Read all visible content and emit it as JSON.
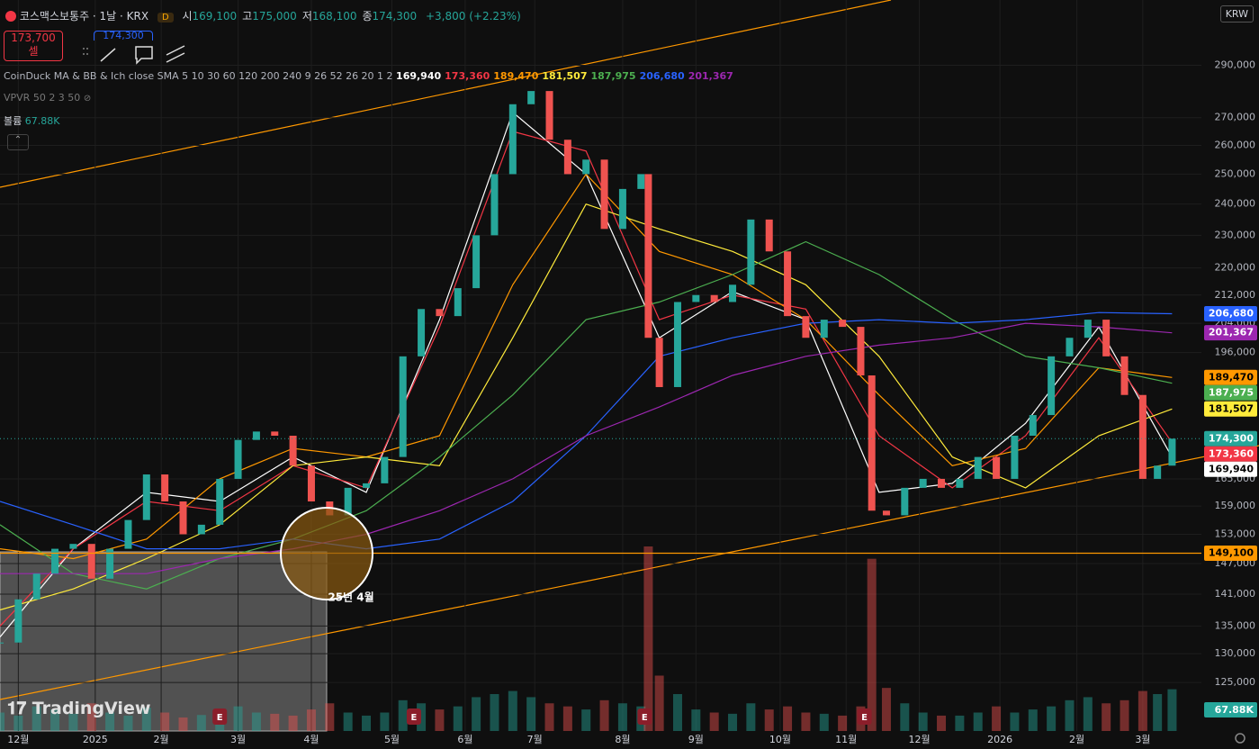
{
  "header": {
    "symbol": "코스맥스보통주 · 1날 · KRX",
    "interval_badge": "D",
    "ohlc": [
      {
        "label": "시",
        "value": "169,100"
      },
      {
        "label": "고",
        "value": "175,000"
      },
      {
        "label": "저",
        "value": "168,100"
      },
      {
        "label": "종",
        "value": "174,300"
      }
    ],
    "change": "+3,800 (+2.23%)",
    "sell_price": "173,700",
    "sell_label": "셀",
    "buy_price": "174,300"
  },
  "indicators": {
    "ma_title": "CoinDuck MA & BB & Ich close SMA 5 10 30 60 120 200 240 9 26 52 26 20 1 2",
    "vpvr": "VPVR 50 2 3 50",
    "volume_label": "볼륨",
    "volume_value": "67.88K"
  },
  "currency": "KRW",
  "watermark": "TradingView",
  "chart_data": {
    "type": "candlestick",
    "log_scale": true,
    "grid": true,
    "xlim": [
      0,
      328
    ],
    "ylim": [
      117000,
      317000
    ],
    "yticks": [
      {
        "value": 290000,
        "label": "290,000"
      },
      {
        "value": 270000,
        "label": "270,000"
      },
      {
        "value": 260000,
        "label": "260,000"
      },
      {
        "value": 250000,
        "label": "250,000"
      },
      {
        "value": 240000,
        "label": "240,000"
      },
      {
        "value": 230000,
        "label": "230,000"
      },
      {
        "value": 220000,
        "label": "220,000"
      },
      {
        "value": 212000,
        "label": "212,000"
      },
      {
        "value": 204000,
        "label": "204,000"
      },
      {
        "value": 196000,
        "label": "196,000"
      },
      {
        "value": 165000,
        "label": "165,000"
      },
      {
        "value": 159000,
        "label": "159,000"
      },
      {
        "value": 153000,
        "label": "153,000"
      },
      {
        "value": 147000,
        "label": "147,000"
      },
      {
        "value": 141000,
        "label": "141,000"
      },
      {
        "value": 135000,
        "label": "135,000"
      },
      {
        "value": 130000,
        "label": "130,000"
      },
      {
        "value": 125000,
        "label": "125,000"
      }
    ],
    "xticks": [
      {
        "value": 5,
        "label": "12월"
      },
      {
        "value": 26,
        "label": "2025"
      },
      {
        "value": 44,
        "label": "2월"
      },
      {
        "value": 65,
        "label": "3월"
      },
      {
        "value": 85,
        "label": "4월"
      },
      {
        "value": 107,
        "label": "5월"
      },
      {
        "value": 127,
        "label": "6월"
      },
      {
        "value": 146,
        "label": "7월"
      },
      {
        "value": 170,
        "label": "8월"
      },
      {
        "value": 190,
        "label": "9월"
      },
      {
        "value": 213,
        "label": "10월"
      },
      {
        "value": 231,
        "label": "11월"
      },
      {
        "value": 251,
        "label": "12월"
      },
      {
        "value": 273,
        "label": "2026"
      },
      {
        "value": 294,
        "label": "2월"
      },
      {
        "value": 312,
        "label": "3월"
      }
    ],
    "candles": {
      "up_color": "#26a69a",
      "down_color": "#ef5350",
      "last_label": "174,300",
      "x": [
        0,
        5,
        10,
        15,
        20,
        25,
        30,
        35,
        40,
        45,
        50,
        55,
        60,
        65,
        70,
        75,
        80,
        85,
        90,
        95,
        100,
        105,
        110,
        115,
        120,
        125,
        130,
        135,
        140,
        145,
        150,
        155,
        160,
        165,
        170,
        175,
        177,
        180,
        185,
        190,
        195,
        200,
        205,
        210,
        215,
        220,
        225,
        230,
        235,
        238,
        242,
        247,
        252,
        257,
        262,
        267,
        272,
        277,
        282,
        287,
        292,
        297,
        302,
        307,
        312,
        316,
        320
      ],
      "values": [
        132000,
        140000,
        145000,
        150000,
        151000,
        144000,
        150000,
        156000,
        166000,
        160000,
        153000,
        155000,
        165000,
        174000,
        176000,
        175000,
        168000,
        160000,
        157000,
        163000,
        164000,
        170000,
        195000,
        208000,
        206000,
        214000,
        230000,
        250000,
        275000,
        280000,
        262000,
        250000,
        255000,
        232000,
        245000,
        250000,
        200000,
        187000,
        210000,
        212000,
        210000,
        215000,
        235000,
        225000,
        206000,
        200000,
        205000,
        203000,
        190000,
        158000,
        157000,
        163000,
        165000,
        163000,
        165000,
        170000,
        165000,
        175000,
        180000,
        195000,
        200000,
        205000,
        195000,
        185000,
        165000,
        168000,
        174300
      ]
    },
    "volume": {
      "last_label": "67.88K",
      "values": [
        30,
        25,
        40,
        35,
        28,
        45,
        30,
        25,
        38,
        30,
        22,
        26,
        35,
        40,
        30,
        28,
        25,
        35,
        45,
        30,
        25,
        30,
        50,
        45,
        35,
        40,
        55,
        60,
        65,
        55,
        45,
        40,
        35,
        50,
        45,
        40,
        300,
        90,
        60,
        35,
        30,
        28,
        45,
        35,
        40,
        30,
        28,
        25,
        40,
        280,
        70,
        45,
        30,
        25,
        25,
        30,
        40,
        30,
        35,
        40,
        50,
        55,
        45,
        50,
        65,
        60,
        67.88
      ]
    },
    "ma_x": [
      0,
      20,
      40,
      60,
      80,
      100,
      120,
      140,
      160,
      180,
      200,
      220,
      240,
      260,
      280,
      300,
      320
    ],
    "series": [
      {
        "color": "#ffffff",
        "last_label": "169,940",
        "values": [
          133000,
          150000,
          162000,
          160000,
          170000,
          162000,
          205000,
          272000,
          250000,
          200000,
          213000,
          205000,
          162000,
          164000,
          178000,
          203000,
          169940
        ]
      },
      {
        "color": "#f23645",
        "last_label": "173,360",
        "values": [
          135000,
          150000,
          160000,
          158000,
          168000,
          163000,
          203000,
          265000,
          258000,
          205000,
          212000,
          208000,
          175000,
          163000,
          175000,
          200000,
          173360
        ]
      },
      {
        "color": "#ff9800",
        "last_label": "189,470",
        "values": [
          150000,
          148000,
          152000,
          165000,
          172000,
          170000,
          175000,
          215000,
          250000,
          225000,
          218000,
          205000,
          185000,
          168000,
          172000,
          192000,
          189470
        ]
      },
      {
        "color": "#ffeb3b",
        "last_label": "181,507",
        "values": [
          138000,
          142000,
          148000,
          155000,
          168000,
          170000,
          168000,
          200000,
          240000,
          232000,
          225000,
          215000,
          195000,
          170000,
          163000,
          175000,
          181507
        ]
      },
      {
        "color": "#4caf50",
        "last_label": "187,975",
        "values": [
          155000,
          145000,
          142000,
          148000,
          152000,
          158000,
          170000,
          185000,
          205000,
          210000,
          218000,
          228000,
          218000,
          205000,
          195000,
          192000,
          187975
        ]
      },
      {
        "color": "#2962ff",
        "last_label": "206,680",
        "values": [
          160000,
          155000,
          150000,
          150000,
          152000,
          150000,
          152000,
          160000,
          175000,
          195000,
          200000,
          204000,
          205000,
          204000,
          205000,
          207000,
          206680
        ]
      },
      {
        "color": "#9c27b0",
        "last_label": "201,367",
        "values": [
          145000,
          145000,
          145000,
          148000,
          150000,
          153000,
          158000,
          165000,
          175000,
          182000,
          190000,
          195000,
          198000,
          200000,
          204000,
          203000,
          201367
        ]
      }
    ],
    "hline": {
      "value": 149100,
      "label": "149,100",
      "color": "#ff9800"
    },
    "annotation": "25년 4월",
    "events": [
      {
        "x": 60,
        "label": "E"
      },
      {
        "x": 113,
        "label": "E"
      },
      {
        "x": 176,
        "label": "E"
      },
      {
        "x": 236,
        "label": "E"
      }
    ]
  }
}
